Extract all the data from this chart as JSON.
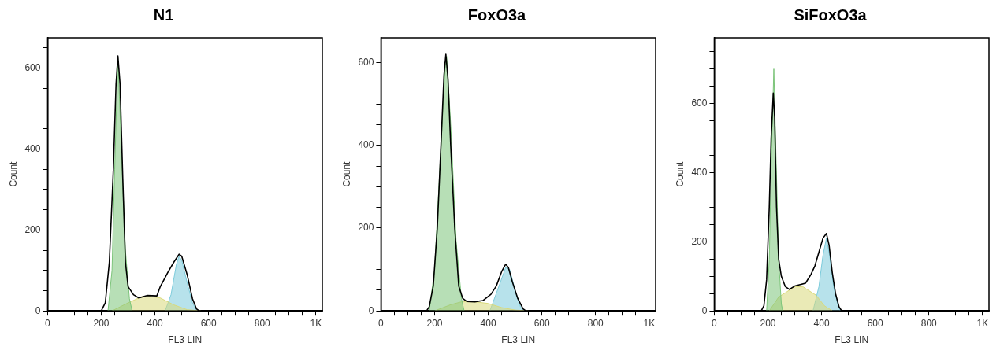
{
  "chart_data": [
    {
      "type": "area",
      "title": "N1",
      "xlabel": "FL3 LIN",
      "ylabel": "Count",
      "xlim": [
        0,
        1024
      ],
      "ylim": [
        0,
        675
      ],
      "xticks": [
        0,
        {
          "value": 50,
          "label": null
        },
        {
          "value": 100,
          "label": null
        },
        {
          "value": 150,
          "label": null
        },
        200,
        {
          "value": 250,
          "label": null
        },
        {
          "value": 300,
          "label": null
        },
        {
          "value": 350,
          "label": null
        },
        400,
        {
          "value": 450,
          "label": null
        },
        {
          "value": 500,
          "label": null
        },
        {
          "value": 550,
          "label": null
        },
        600,
        {
          "value": 650,
          "label": null
        },
        {
          "value": 700,
          "label": null
        },
        {
          "value": 750,
          "label": null
        },
        800,
        {
          "value": 850,
          "label": null
        },
        {
          "value": 900,
          "label": null
        },
        {
          "value": 950,
          "label": null
        },
        {
          "value": 1000,
          "label": "1K"
        }
      ],
      "yticks": [
        0,
        {
          "value": 50,
          "label": null
        },
        {
          "value": 100,
          "label": null
        },
        {
          "value": 150,
          "label": null
        },
        200,
        {
          "value": 250,
          "label": null
        },
        {
          "value": 300,
          "label": null
        },
        {
          "value": 350,
          "label": null
        },
        400,
        {
          "value": 450,
          "label": null
        },
        {
          "value": 500,
          "label": null
        },
        {
          "value": 550,
          "label": null
        },
        600,
        {
          "value": 650,
          "label": null
        }
      ],
      "grid": false,
      "legend": false,
      "series": [
        {
          "color": "#7cc47a",
          "x": [
            225,
            240,
            250,
            262,
            275,
            290,
            305,
            315
          ],
          "values": [
            0,
            100,
            350,
            625,
            400,
            150,
            30,
            0
          ]
        },
        {
          "color": "#d9d97a",
          "x": [
            240,
            300,
            350,
            375,
            420,
            470,
            520,
            572
          ],
          "values": [
            0,
            20,
            35,
            37,
            32,
            15,
            3,
            0
          ]
        },
        {
          "color": "#7ccbdb",
          "x": [
            438,
            460,
            480,
            490,
            500,
            520,
            540,
            557
          ],
          "values": [
            0,
            40,
            115,
            135,
            125,
            70,
            20,
            0
          ]
        },
        {
          "type": "line",
          "color": "#000000",
          "x": [
            0,
            200,
            215,
            230,
            245,
            255,
            262,
            270,
            280,
            290,
            300,
            320,
            340,
            370,
            407,
            420,
            448,
            470,
            490,
            500,
            520,
            540,
            555,
            565,
            1024
          ],
          "values": [
            0,
            0,
            20,
            120,
            350,
            560,
            630,
            560,
            330,
            120,
            60,
            40,
            32,
            38,
            37,
            60,
            95,
            120,
            140,
            135,
            90,
            30,
            5,
            0,
            0
          ]
        }
      ]
    },
    {
      "type": "area",
      "title": "FoxO3a",
      "xlabel": "FL3 LIN",
      "ylabel": "Count",
      "xlim": [
        0,
        1024
      ],
      "ylim": [
        0,
        660
      ],
      "xticks": [
        0,
        {
          "value": 50,
          "label": null
        },
        {
          "value": 100,
          "label": null
        },
        {
          "value": 150,
          "label": null
        },
        200,
        {
          "value": 250,
          "label": null
        },
        {
          "value": 300,
          "label": null
        },
        {
          "value": 350,
          "label": null
        },
        400,
        {
          "value": 450,
          "label": null
        },
        {
          "value": 500,
          "label": null
        },
        {
          "value": 550,
          "label": null
        },
        600,
        {
          "value": 650,
          "label": null
        },
        {
          "value": 700,
          "label": null
        },
        {
          "value": 750,
          "label": null
        },
        800,
        {
          "value": 850,
          "label": null
        },
        {
          "value": 900,
          "label": null
        },
        {
          "value": 950,
          "label": null
        },
        {
          "value": 1000,
          "label": "1K"
        }
      ],
      "yticks": [
        0,
        {
          "value": 50,
          "label": null
        },
        {
          "value": 100,
          "label": null
        },
        {
          "value": 150,
          "label": null
        },
        200,
        {
          "value": 250,
          "label": null
        },
        {
          "value": 300,
          "label": null
        },
        {
          "value": 350,
          "label": null
        },
        400,
        {
          "value": 450,
          "label": null
        },
        {
          "value": 500,
          "label": null
        },
        {
          "value": 550,
          "label": null
        },
        600,
        {
          "value": 650,
          "label": null
        }
      ],
      "grid": false,
      "legend": false,
      "series": [
        {
          "color": "#7cc47a",
          "x": [
            180,
            200,
            220,
            240,
            245,
            260,
            280,
            300,
            310
          ],
          "values": [
            0,
            100,
            350,
            600,
            615,
            450,
            170,
            30,
            0
          ]
        },
        {
          "color": "#d9d97a",
          "x": [
            200,
            260,
            300,
            350,
            400,
            450,
            500,
            550
          ],
          "values": [
            0,
            15,
            22,
            22,
            18,
            8,
            2,
            0
          ]
        },
        {
          "color": "#7ccbdb",
          "x": [
            406,
            440,
            465,
            480,
            500,
            520,
            535
          ],
          "values": [
            0,
            60,
            105,
            100,
            50,
            10,
            0
          ]
        },
        {
          "type": "line",
          "color": "#000000",
          "x": [
            0,
            170,
            180,
            195,
            210,
            225,
            235,
            242,
            250,
            260,
            275,
            290,
            305,
            320,
            350,
            380,
            410,
            430,
            450,
            465,
            475,
            490,
            510,
            530,
            540,
            1024
          ],
          "values": [
            0,
            0,
            10,
            60,
            200,
            420,
            570,
            620,
            560,
            400,
            200,
            60,
            30,
            23,
            22,
            25,
            40,
            60,
            95,
            113,
            105,
            70,
            30,
            5,
            0,
            0
          ]
        }
      ]
    },
    {
      "type": "area",
      "title": "SiFoxO3a",
      "xlabel": "FL3 LIN",
      "ylabel": "Count",
      "xlim": [
        0,
        1024
      ],
      "ylim": [
        0,
        790
      ],
      "xticks": [
        0,
        {
          "value": 50,
          "label": null
        },
        {
          "value": 100,
          "label": null
        },
        {
          "value": 150,
          "label": null
        },
        200,
        {
          "value": 250,
          "label": null
        },
        {
          "value": 300,
          "label": null
        },
        {
          "value": 350,
          "label": null
        },
        400,
        {
          "value": 450,
          "label": null
        },
        {
          "value": 500,
          "label": null
        },
        {
          "value": 550,
          "label": null
        },
        600,
        {
          "value": 650,
          "label": null
        },
        {
          "value": 700,
          "label": null
        },
        {
          "value": 750,
          "label": null
        },
        800,
        {
          "value": 850,
          "label": null
        },
        {
          "value": 900,
          "label": null
        },
        {
          "value": 950,
          "label": null
        },
        {
          "value": 1000,
          "label": "1K"
        }
      ],
      "yticks": [
        0,
        {
          "value": 50,
          "label": null
        },
        {
          "value": 100,
          "label": null
        },
        {
          "value": 150,
          "label": null
        },
        200,
        {
          "value": 250,
          "label": null
        },
        {
          "value": 300,
          "label": null
        },
        {
          "value": 350,
          "label": null
        },
        400,
        {
          "value": 450,
          "label": null
        },
        {
          "value": 500,
          "label": null
        },
        {
          "value": 550,
          "label": null
        },
        600,
        {
          "value": 650,
          "label": null
        },
        {
          "value": 700,
          "label": null
        },
        {
          "value": 750,
          "label": null
        }
      ],
      "grid": false,
      "legend": false,
      "series": [
        {
          "color": "#7cc47a",
          "x": [
            195,
            205,
            213,
            222,
            230,
            240,
            250,
            255
          ],
          "values": [
            0,
            150,
            450,
            700,
            450,
            150,
            20,
            0
          ]
        },
        {
          "color": "#d9d97a",
          "x": [
            205,
            240,
            270,
            300,
            330,
            360,
            380,
            410,
            440
          ],
          "values": [
            0,
            40,
            55,
            70,
            70,
            55,
            45,
            15,
            0
          ]
        },
        {
          "color": "#7ccbdb",
          "x": [
            368,
            390,
            405,
            418,
            430,
            445,
            460,
            470
          ],
          "values": [
            0,
            70,
            160,
            210,
            160,
            70,
            20,
            0
          ]
        },
        {
          "type": "line",
          "color": "#000000",
          "x": [
            0,
            175,
            185,
            195,
            205,
            212,
            220,
            225,
            232,
            240,
            250,
            265,
            280,
            300,
            320,
            340,
            360,
            375,
            390,
            405,
            418,
            428,
            440,
            452,
            465,
            475,
            1024
          ],
          "values": [
            0,
            0,
            15,
            90,
            300,
            500,
            630,
            560,
            300,
            150,
            100,
            70,
            62,
            72,
            76,
            80,
            105,
            130,
            170,
            210,
            224,
            190,
            110,
            50,
            12,
            0,
            0
          ]
        }
      ]
    }
  ]
}
